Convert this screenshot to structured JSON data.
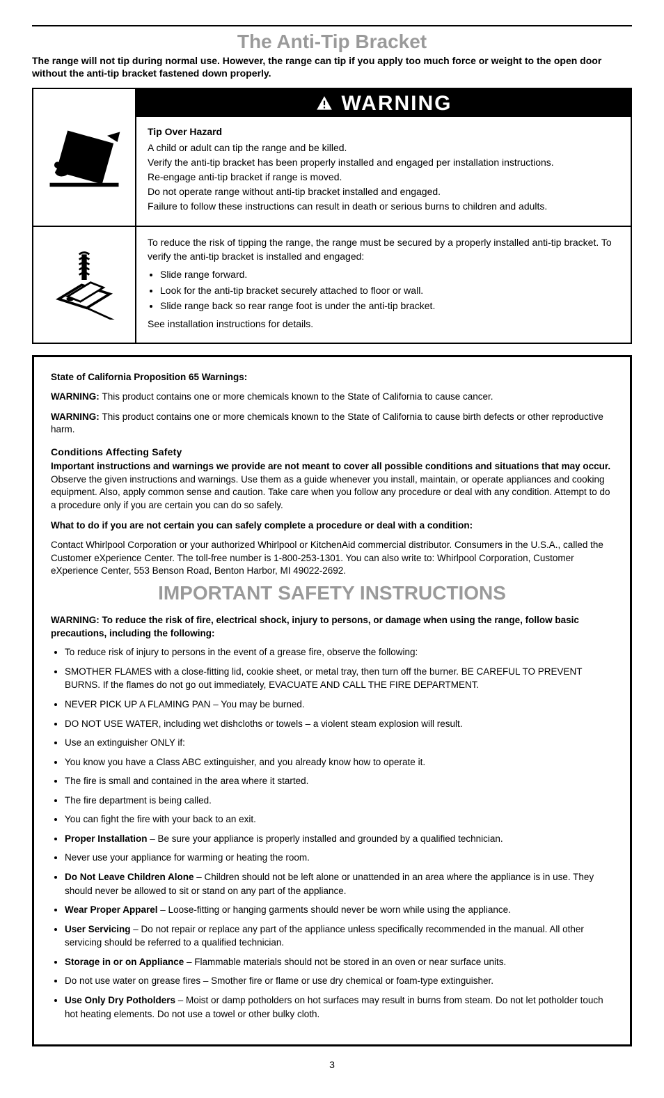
{
  "colors": {
    "text": "#000000",
    "background": "#ffffff",
    "muted_title": "#9a9a9a",
    "warning_bg": "#000000",
    "warning_fg": "#ffffff",
    "rule": "#000000"
  },
  "typography": {
    "title_fontsize": 28,
    "body_fontsize": 14,
    "fine_fontsize": 13.5,
    "warning_fontsize": 30
  },
  "page_number": "3",
  "section": {
    "title": "The Anti-Tip Bracket",
    "intro": "The range will not tip during normal use. However, the range can tip if you apply too much force or weight to the open door without the anti-tip bracket fastened down properly."
  },
  "warning": {
    "label": "WARNING",
    "tip_title": "Tip Over Hazard",
    "tip_lines": [
      "A child or adult can tip the range and be killed.",
      "Verify the anti-tip bracket has been properly installed and engaged per installation instructions.",
      "Re-engage anti-tip bracket if range is moved.",
      "Do not operate range without anti-tip bracket installed and engaged.",
      "Failure to follow these instructions can result in death or serious burns to children and adults."
    ],
    "reduce_intro": "To reduce the risk of tipping the range, the range must be secured by a properly installed anti-tip bracket. To verify the anti-tip bracket is installed and engaged:",
    "checks": [
      "Slide range forward.",
      "Look for the anti-tip bracket securely attached to floor or wall.",
      "Slide range back so rear range foot is under the anti-tip bracket."
    ],
    "closing": "See installation instructions for details."
  },
  "prop65": {
    "heading": "State of California Proposition 65 Warnings:",
    "warn_label": "WARNING:",
    "warn_body": "This product contains one or more chemicals known to the State of California to cause cancer.",
    "warn_body2": "This product contains one or more chemicals known to the State of California to cause birth defects or other reproductive harm."
  },
  "conditions": {
    "title": "Conditions Affecting Safety",
    "intro_bold": "Important instructions and warnings we provide are not meant to cover all possible conditions and situations that may occur.",
    "intro_rest": " Observe the given instructions and warnings. Use them as a guide whenever you install, maintain, or operate appliances and cooking equipment. Also, apply common sense and caution. Take care when you follow any procedure or deal with any condition. Attempt to do a procedure only if you are certain you can do so safely.",
    "what_title": "What to do if you are not certain you can safely complete a procedure or deal with a condition:",
    "what_body": "Contact Whirlpool Corporation or your authorized Whirlpool or KitchenAid commercial distributor. Consumers in the U.S.A., called the Customer eXperience Center. The toll-free number is 1-800-253-1301. You can also write to: Whirlpool Corporation, Customer eXperience Center, 553 Benson Road, Benton Harbor, MI 49022-2692."
  },
  "safety": {
    "title": "IMPORTANT SAFETY INSTRUCTIONS",
    "lead": "WARNING: To reduce the risk of fire, electrical shock, injury to persons, or damage when using the range, follow basic precautions, including the following:",
    "items": [
      {
        "bold": "",
        "text": "To reduce risk of injury to persons in the event of a grease fire, observe the following:"
      },
      {
        "bold": "",
        "text": "SMOTHER FLAMES with a close-fitting lid, cookie sheet, or metal tray, then turn off the burner. BE CAREFUL TO PREVENT BURNS. If the flames do not go out immediately, EVACUATE AND CALL THE FIRE DEPARTMENT."
      },
      {
        "bold": "",
        "text": "NEVER PICK UP A FLAMING PAN – You may be burned."
      },
      {
        "bold": "",
        "text": "DO NOT USE WATER, including wet dishcloths or towels – a violent steam explosion will result."
      },
      {
        "bold": "",
        "text": "Use an extinguisher ONLY if:"
      },
      {
        "bold": "",
        "text": "You know you have a Class ABC extinguisher, and you already know how to operate it."
      },
      {
        "bold": "",
        "text": "The fire is small and contained in the area where it started."
      },
      {
        "bold": "",
        "text": "The fire department is being called."
      },
      {
        "bold": "",
        "text": "You can fight the fire with your back to an exit."
      },
      {
        "bold": "Proper Installation",
        "text": " – Be sure your appliance is properly installed and grounded by a qualified technician."
      },
      {
        "bold": "",
        "text": "Never use your appliance for warming or heating the room."
      },
      {
        "bold": "Do Not Leave Children Alone",
        "text": " – Children should not be left alone or unattended in an area where the appliance is in use. They should never be allowed to sit or stand on any part of the appliance."
      },
      {
        "bold": "Wear Proper Apparel",
        "text": " – Loose-fitting or hanging garments should never be worn while using the appliance."
      },
      {
        "bold": "User Servicing",
        "text": " – Do not repair or replace any part of the appliance unless specifically recommended in the manual. All other servicing should be referred to a qualified technician."
      },
      {
        "bold": "Storage in or on Appliance",
        "text": " – Flammable materials should not be stored in an oven or near surface units."
      },
      {
        "bold": "",
        "text": "Do not use water on grease fires – Smother fire or flame or use dry chemical or foam-type extinguisher."
      },
      {
        "bold": "Use Only Dry Potholders",
        "text": " – Moist or damp potholders on hot surfaces may result in burns from steam. Do not let potholder touch hot heating elements. Do not use a towel or other bulky cloth."
      }
    ]
  }
}
